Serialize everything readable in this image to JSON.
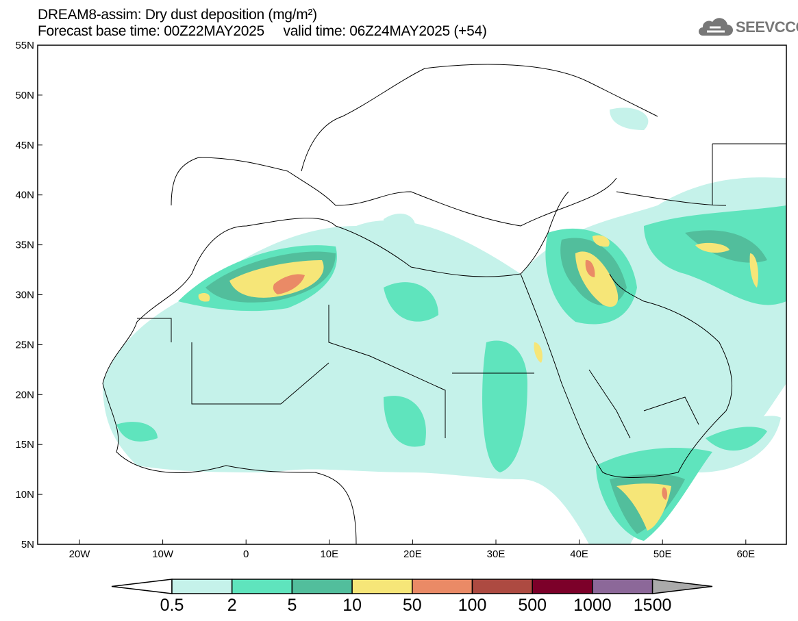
{
  "title": {
    "line1": "DREAM8-assim: Dry dust deposition (mg/m²)",
    "line2": "Forecast base time: 00Z22MAY2025     valid time: 06Z24MAY2025 (+54)"
  },
  "logo": {
    "text": "SEEVCCC",
    "icon": "cloud-icon"
  },
  "axes": {
    "lat_labels": [
      "55N",
      "50N",
      "45N",
      "40N",
      "35N",
      "30N",
      "25N",
      "20N",
      "15N",
      "10N",
      "5N"
    ],
    "lon_labels": [
      "20W",
      "10W",
      "0",
      "10E",
      "20E",
      "30E",
      "40E",
      "50E",
      "60E"
    ]
  },
  "colorbar": {
    "labels": [
      "0.5",
      "2",
      "5",
      "10",
      "50",
      "100",
      "500",
      "1000",
      "1500"
    ],
    "colors": [
      "#ffffff",
      "#c5f2ea",
      "#5fe4bd",
      "#52be9c",
      "#f6e678",
      "#ea8a66",
      "#ad4a41",
      "#7c0029",
      "#8c6899",
      "#aaaaaa"
    ]
  }
}
